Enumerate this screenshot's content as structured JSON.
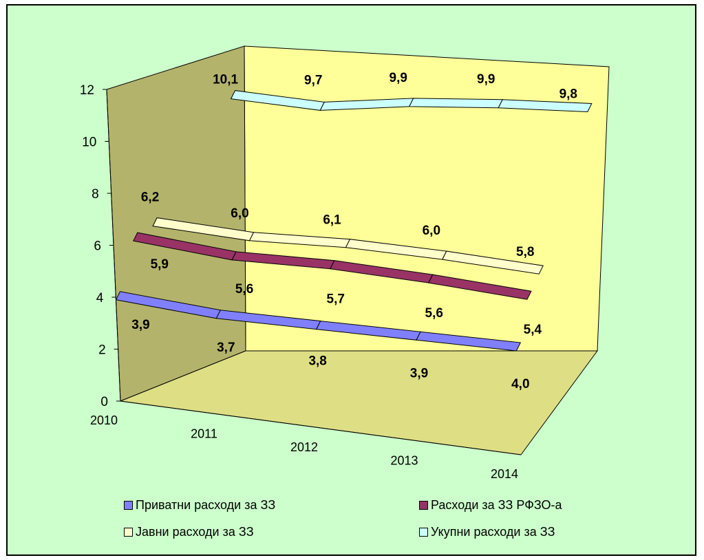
{
  "chart_data": {
    "type": "line",
    "categories": [
      "2010",
      "2011",
      "2012",
      "2013",
      "2014"
    ],
    "yticks": [
      "0",
      "2",
      "4",
      "6",
      "8",
      "10",
      "12"
    ],
    "ylim": [
      0,
      12
    ],
    "series": [
      {
        "name": "Приватни расходи за ЗЗ",
        "values": [
          3.9,
          3.7,
          3.8,
          3.9,
          4.0
        ],
        "labels": [
          "3,9",
          "3,7",
          "3,8",
          "3,9",
          "4,0"
        ],
        "color": "#8080ff"
      },
      {
        "name": "Расходи за ЗЗ РФЗО-а",
        "values": [
          5.9,
          5.6,
          5.7,
          5.6,
          5.4
        ],
        "labels": [
          "5,9",
          "5,6",
          "5,7",
          "5,6",
          "5,4"
        ],
        "color": "#993366"
      },
      {
        "name": "Јавни расходи за ЗЗ",
        "values": [
          6.2,
          6.0,
          6.1,
          6.0,
          5.8
        ],
        "labels": [
          "6,2",
          "6,0",
          "6,1",
          "6,0",
          "5,8"
        ],
        "color": "#ffffcc"
      },
      {
        "name": "Укупни расходи за ЗЗ",
        "values": [
          10.1,
          9.7,
          9.9,
          9.9,
          9.8
        ],
        "labels": [
          "10,1",
          "9,7",
          "9,9",
          "9,9",
          "9,8"
        ],
        "color": "#ccffff"
      }
    ],
    "colors": {
      "frame_bg": "#ccffcc",
      "back_wall": "#ffff99",
      "side_wall": "#b3b36b",
      "floor": "#dede85"
    }
  }
}
